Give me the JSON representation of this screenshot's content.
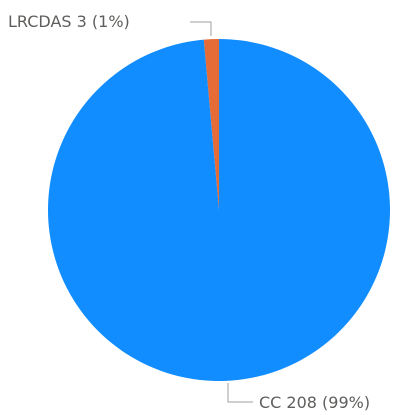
{
  "chart_data": {
    "type": "pie",
    "title": "",
    "slices": [
      {
        "label": "LRCDAS",
        "value": 3,
        "percent_label": "1%",
        "display": "LRCDAS 3 (1%)",
        "color": "#e66c37"
      },
      {
        "label": "CC",
        "value": 208,
        "percent_label": "99%",
        "display": "CC 208 (99%)",
        "color": "#118dff"
      }
    ],
    "legend": "none",
    "data_labels": "outside with leader lines"
  }
}
